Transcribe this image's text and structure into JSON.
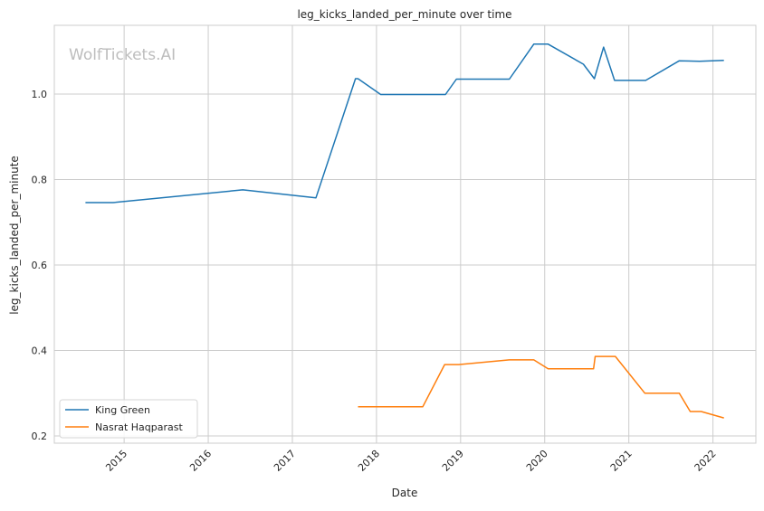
{
  "chart_data": {
    "type": "line",
    "title": "leg_kicks_landed_per_minute over time",
    "xlabel": "Date",
    "ylabel": "leg_kicks_landed_per_minute",
    "watermark": "WolfTickets.AI",
    "xlim": [
      2014.17,
      2022.51
    ],
    "ylim": [
      0.183,
      1.161
    ],
    "xticks": [
      2015,
      2016,
      2017,
      2018,
      2019,
      2020,
      2021,
      2022
    ],
    "xtick_labels": [
      "2015",
      "2016",
      "2017",
      "2018",
      "2019",
      "2020",
      "2021",
      "2022"
    ],
    "yticks": [
      0.2,
      0.4,
      0.6,
      0.8,
      1.0
    ],
    "ytick_labels": [
      "0.2",
      "0.4",
      "0.6",
      "0.8",
      "1.0"
    ],
    "grid": true,
    "legend_position": "lower-left",
    "series": [
      {
        "name": "King Green",
        "color": "#1f77b4",
        "x": [
          2014.54,
          2014.87,
          2016.41,
          2017.28,
          2017.75,
          2017.78,
          2018.05,
          2018.82,
          2018.95,
          2019.58,
          2019.87,
          2020.04,
          2020.46,
          2020.59,
          2020.7,
          2020.83,
          2021.2,
          2021.6,
          2021.84,
          2022.13
        ],
        "y": [
          0.746,
          0.746,
          0.776,
          0.757,
          1.036,
          1.036,
          0.999,
          0.999,
          1.035,
          1.035,
          1.117,
          1.117,
          1.07,
          1.036,
          1.11,
          1.032,
          1.032,
          1.078,
          1.077,
          1.079
        ]
      },
      {
        "name": "Nasrat Haqparast",
        "color": "#ff7f0e",
        "x": [
          2017.78,
          2018.55,
          2018.81,
          2018.98,
          2019.58,
          2019.87,
          2020.04,
          2020.58,
          2020.6,
          2020.84,
          2021.19,
          2021.6,
          2021.73,
          2021.86,
          2022.13
        ],
        "y": [
          0.268,
          0.268,
          0.367,
          0.367,
          0.378,
          0.378,
          0.357,
          0.357,
          0.386,
          0.386,
          0.3,
          0.3,
          0.257,
          0.257,
          0.242
        ]
      }
    ]
  }
}
